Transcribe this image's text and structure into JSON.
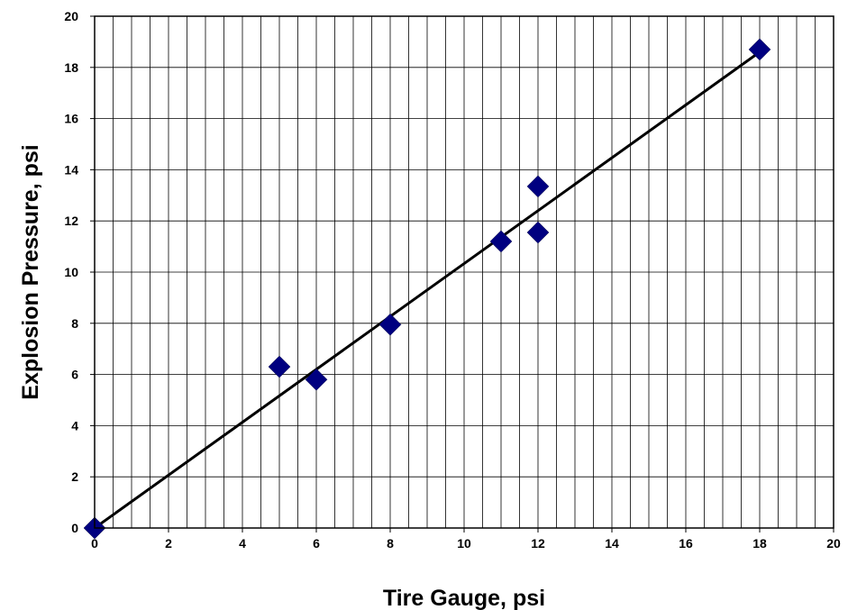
{
  "chart_data": {
    "type": "scatter",
    "title": "",
    "xlabel": "Tire Gauge, psi",
    "ylabel": "Explosion Pressure, psi",
    "xlim": [
      0,
      20
    ],
    "ylim": [
      0,
      20
    ],
    "x_ticks": [
      "0",
      "2",
      "4",
      "6",
      "8",
      "10",
      "12",
      "14",
      "16",
      "18",
      "20"
    ],
    "y_ticks": [
      "0",
      "2",
      "4",
      "6",
      "8",
      "10",
      "12",
      "14",
      "16",
      "18",
      "20"
    ],
    "grid": true,
    "legend": "none",
    "series": [
      {
        "marker": "diamond",
        "color": "#000080",
        "points": [
          {
            "x": 0,
            "y": 0
          },
          {
            "x": 5,
            "y": 6.3
          },
          {
            "x": 6,
            "y": 5.8
          },
          {
            "x": 8,
            "y": 7.95
          },
          {
            "x": 11,
            "y": 11.2
          },
          {
            "x": 12,
            "y": 13.35
          },
          {
            "x": 12,
            "y": 11.55
          },
          {
            "x": 18,
            "y": 18.7
          }
        ]
      }
    ],
    "trendline": {
      "type": "linear",
      "color": "#000000",
      "x": [
        0,
        18
      ],
      "y": [
        0,
        18.6
      ]
    }
  }
}
